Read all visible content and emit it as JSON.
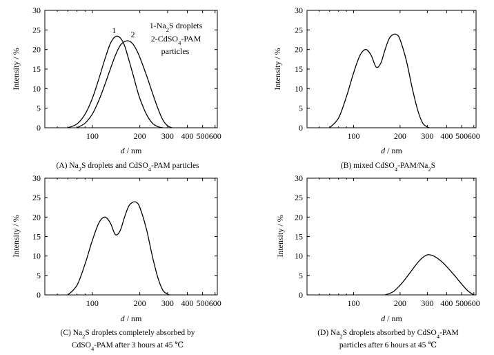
{
  "chart_data": [
    {
      "id": "A",
      "type": "line",
      "caption": [
        "(A) Na₂S droplets and CdSO₄-PAM particles"
      ],
      "xlabel": "d / nm",
      "ylabel": "Intensity / %",
      "x_scale": "log",
      "xlim": [
        50,
        620
      ],
      "ylim": [
        0,
        30
      ],
      "x_ticks": [
        100,
        200,
        300,
        400,
        500,
        600
      ],
      "y_ticks": [
        0,
        5,
        10,
        15,
        20,
        25,
        30
      ],
      "legend": [
        "1-Na₂S droplets",
        "2-CdSO₄-PAM",
        "particles"
      ],
      "series": [
        {
          "name": "1",
          "x": [
            70,
            80,
            90,
            100,
            110,
            120,
            130,
            140,
            150,
            160,
            170,
            180,
            190,
            200,
            220,
            240,
            260,
            280
          ],
          "y": [
            0,
            1,
            3.5,
            7.5,
            12.5,
            17.5,
            21.5,
            23.3,
            23.0,
            21.0,
            17.5,
            14.0,
            10.5,
            7.5,
            3.5,
            1.2,
            0.3,
            0
          ]
        },
        {
          "name": "2",
          "x": [
            80,
            90,
            100,
            110,
            120,
            130,
            140,
            150,
            160,
            170,
            180,
            190,
            200,
            220,
            240,
            260,
            280,
            300,
            320
          ],
          "y": [
            0,
            1.2,
            3.5,
            7.0,
            11.0,
            15.0,
            18.5,
            21.0,
            22.0,
            22.2,
            21.5,
            20.0,
            18.0,
            13.5,
            9.0,
            5.0,
            2.0,
            0.5,
            0
          ]
        }
      ]
    },
    {
      "id": "B",
      "type": "line",
      "caption": [
        "(B) mixed CdSO₄-PAM/Na₂S"
      ],
      "xlabel": "d / nm",
      "ylabel": "Intensity / %",
      "x_scale": "log",
      "xlim": [
        50,
        620
      ],
      "ylim": [
        0,
        30
      ],
      "x_ticks": [
        100,
        200,
        300,
        400,
        500,
        600
      ],
      "y_ticks": [
        0,
        5,
        10,
        15,
        20,
        25,
        30
      ],
      "series": [
        {
          "x": [
            70,
            80,
            90,
            100,
            110,
            120,
            130,
            140,
            150,
            160,
            170,
            180,
            190,
            200,
            220,
            240,
            260,
            280,
            300,
            310
          ],
          "y": [
            0,
            2.5,
            8,
            14,
            18.5,
            20,
            18.5,
            15.5,
            16.5,
            20,
            22.8,
            23.8,
            23.8,
            22.5,
            17,
            10,
            4.5,
            1.2,
            0.2,
            0
          ]
        }
      ]
    },
    {
      "id": "C",
      "type": "line",
      "caption": [
        "(C) Na₂S droplets completely absorbed by",
        "CdSO₄-PAM after 3 hours at 45 ℃"
      ],
      "xlabel": "d / nm",
      "ylabel": "Intensity / %",
      "x_scale": "log",
      "xlim": [
        50,
        620
      ],
      "ylim": [
        0,
        30
      ],
      "x_ticks": [
        100,
        200,
        300,
        400,
        500,
        600
      ],
      "y_ticks": [
        0,
        5,
        10,
        15,
        20,
        25,
        30
      ],
      "series": [
        {
          "x": [
            70,
            80,
            90,
            100,
            110,
            120,
            130,
            140,
            150,
            160,
            170,
            180,
            190,
            200,
            220,
            240,
            260,
            280,
            300,
            310
          ],
          "y": [
            0,
            2.5,
            8,
            14,
            18.5,
            20,
            18.5,
            15.5,
            16.5,
            20,
            22.8,
            23.8,
            23.8,
            22.5,
            17,
            10,
            4.5,
            1.2,
            0.2,
            0
          ]
        }
      ]
    },
    {
      "id": "D",
      "type": "line",
      "caption": [
        "(D) Na₂S droplets absorbed by CdSO₄-PAM",
        "particles after 6 hours at 45 ℃"
      ],
      "xlabel": "d / nm",
      "ylabel": "Intensity / %",
      "x_scale": "log",
      "xlim": [
        50,
        620
      ],
      "ylim": [
        0,
        30
      ],
      "x_ticks": [
        100,
        200,
        300,
        400,
        500,
        600
      ],
      "y_ticks": [
        0,
        5,
        10,
        15,
        20,
        25,
        30
      ],
      "series": [
        {
          "x": [
            160,
            180,
            200,
            220,
            240,
            260,
            280,
            300,
            320,
            340,
            360,
            380,
            400,
            450,
            500,
            550,
            600
          ],
          "y": [
            0,
            0.8,
            2.5,
            4.5,
            6.5,
            8.3,
            9.6,
            10.3,
            10.2,
            9.7,
            9.0,
            8.2,
            7.3,
            5.0,
            2.8,
            1.0,
            0
          ]
        }
      ]
    }
  ]
}
